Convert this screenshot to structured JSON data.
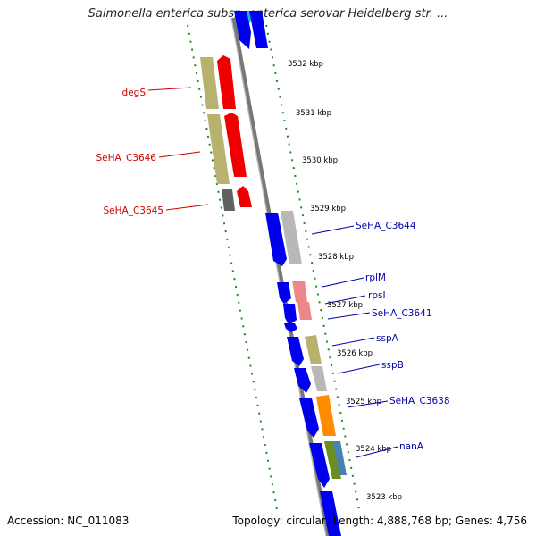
{
  "title": "Salmonella enterica subsp. enterica serovar Heidelberg str. ...",
  "footer": {
    "accession": "Accession: NC_011083",
    "summary": "Topology: circular; Length: 4,888,768 bp; Genes: 4,756"
  },
  "colors": {
    "backbone": "#808080",
    "ticks": "#1f8a1f",
    "left_label": "#cc0000",
    "right_label": "#0000aa"
  },
  "kbp_ticks": [
    "3532 kbp",
    "3531 kbp",
    "3530 kbp",
    "3529 kbp",
    "3528 kbp",
    "3527 kbp",
    "3526 kbp",
    "3525 kbp",
    "3524 kbp",
    "3523 kbp"
  ],
  "left_labels": [
    "degS",
    "SeHA_C3646",
    "SeHA_C3645"
  ],
  "right_labels": [
    "SeHA_C3644",
    "rplM",
    "rpsI",
    "SeHA_C3641",
    "sspA",
    "sspB",
    "SeHA_C3638",
    "nanA"
  ]
}
